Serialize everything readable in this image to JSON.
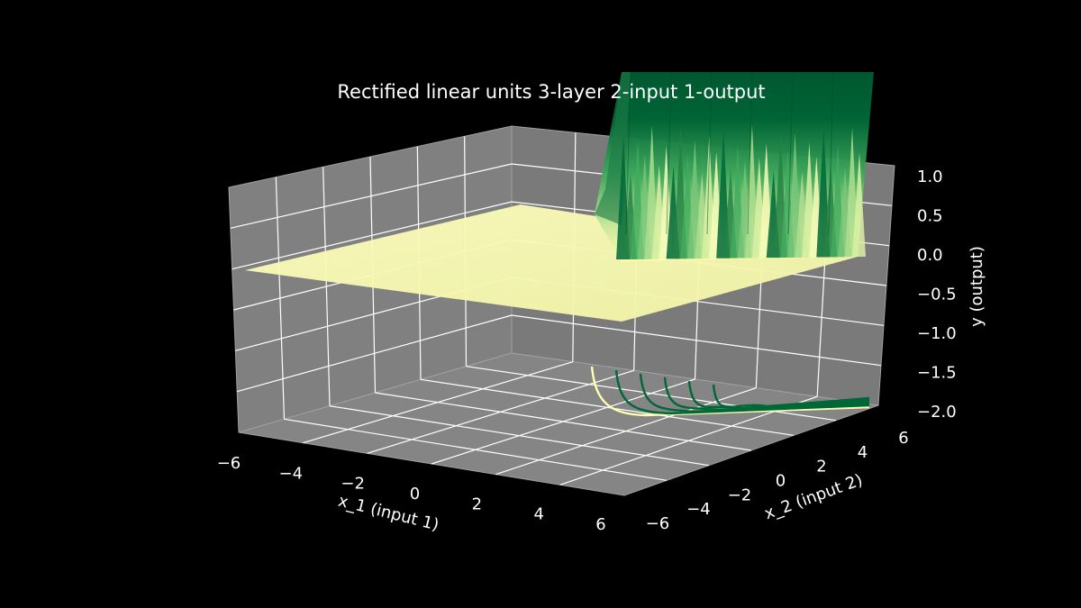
{
  "chart_data": {
    "type": "surface3d",
    "title": "Rectified linear units 3-layer 2-input 1-output",
    "xlabel": "x_1 (input 1)",
    "ylabel": "x_2 (input 2)",
    "zlabel": "y (output)",
    "x_ticks": [
      "−6",
      "−4",
      "−2",
      "0",
      "2",
      "4",
      "6"
    ],
    "y_ticks": [
      "−6",
      "−4",
      "−2",
      "0",
      "2",
      "4",
      "6"
    ],
    "z_ticks": [
      "1.0",
      "0.5",
      "0.0",
      "−0.5",
      "−1.0",
      "−1.5",
      "−2.0"
    ],
    "xlim": [
      -6,
      6
    ],
    "ylim": [
      -6,
      6
    ],
    "zlim": [
      -2,
      1
    ],
    "grid": true,
    "colormap": "YlGn",
    "flat_plane_z": 0,
    "contour_lines": 6,
    "colors": {
      "background": "#000000",
      "pane": "#808080",
      "grid": "#ffffff",
      "surface_flat": "#ffffb2",
      "surface_high": "#006837",
      "surface_mid": "#41ab5d",
      "surface_low": "#d9f0a3"
    }
  }
}
